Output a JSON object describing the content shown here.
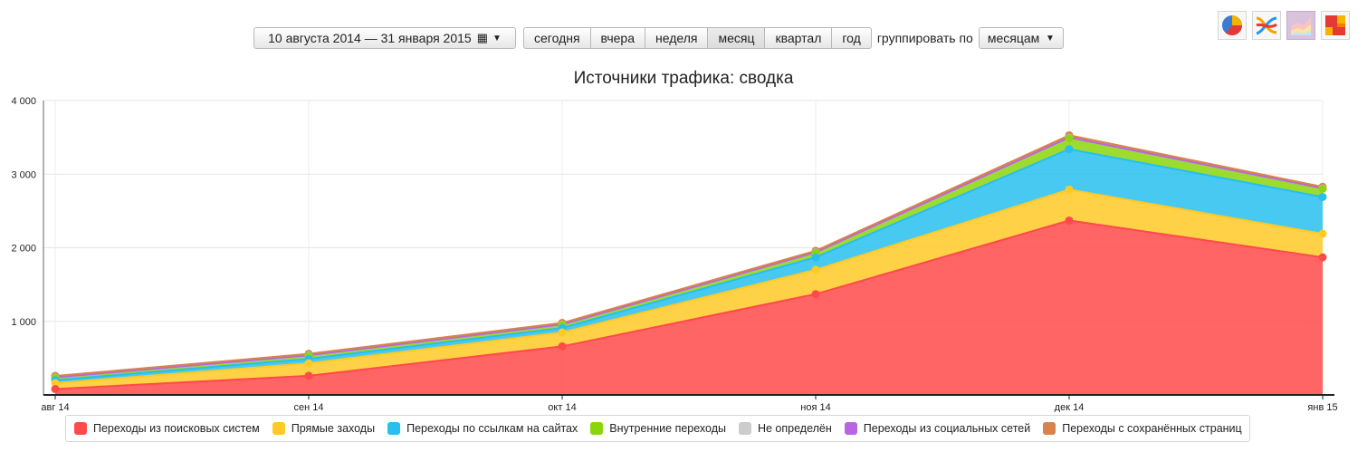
{
  "toolbar": {
    "date_range": "10 августа 2014 — 31 января 2015",
    "periods": [
      "сегодня",
      "вчера",
      "неделя",
      "месяц",
      "квартал",
      "год"
    ],
    "active_period": "месяц",
    "group_label": "группировать по",
    "group_value": "месяцам"
  },
  "view_icons": [
    "pie-chart-icon",
    "line-chart-icon",
    "area-chart-icon",
    "treemap-icon"
  ],
  "active_view": "area-chart-icon",
  "chart_data": {
    "type": "area",
    "stacked": true,
    "title": "Источники трафика: сводка",
    "xlabel": "",
    "ylabel": "",
    "categories": [
      "авг 14",
      "сен 14",
      "окт 14",
      "ноя 14",
      "дек 14",
      "янв 15"
    ],
    "ylim": [
      0,
      4000
    ],
    "yticks": [
      1000,
      2000,
      3000,
      4000
    ],
    "ytick_labels": [
      "1 000",
      "2 000",
      "3 000",
      "4 000"
    ],
    "grid": true,
    "legend": "bottom",
    "series": [
      {
        "name": "Переходы из поисковых систем",
        "color": "#ff4a4a",
        "values": [
          80,
          260,
          660,
          1370,
          2370,
          1870
        ]
      },
      {
        "name": "Прямые заходы",
        "color": "#ffc926",
        "values": [
          80,
          170,
          190,
          330,
          420,
          320
        ]
      },
      {
        "name": "Переходы по ссылкам на сайтах",
        "color": "#27bfee",
        "values": [
          40,
          60,
          60,
          170,
          550,
          500
        ]
      },
      {
        "name": "Внутренние переходы",
        "color": "#8bd60a",
        "values": [
          30,
          40,
          40,
          60,
          150,
          110
        ]
      },
      {
        "name": "Не определён",
        "color": "#cccccc",
        "values": [
          5,
          5,
          5,
          5,
          5,
          5
        ]
      },
      {
        "name": "Переходы из социальных сетей",
        "color": "#b865e0",
        "values": [
          3,
          3,
          3,
          3,
          3,
          3
        ]
      },
      {
        "name": "Переходы с сохранённых страниц",
        "color": "#d8834a",
        "values": [
          20,
          20,
          20,
          20,
          30,
          20
        ]
      }
    ]
  }
}
